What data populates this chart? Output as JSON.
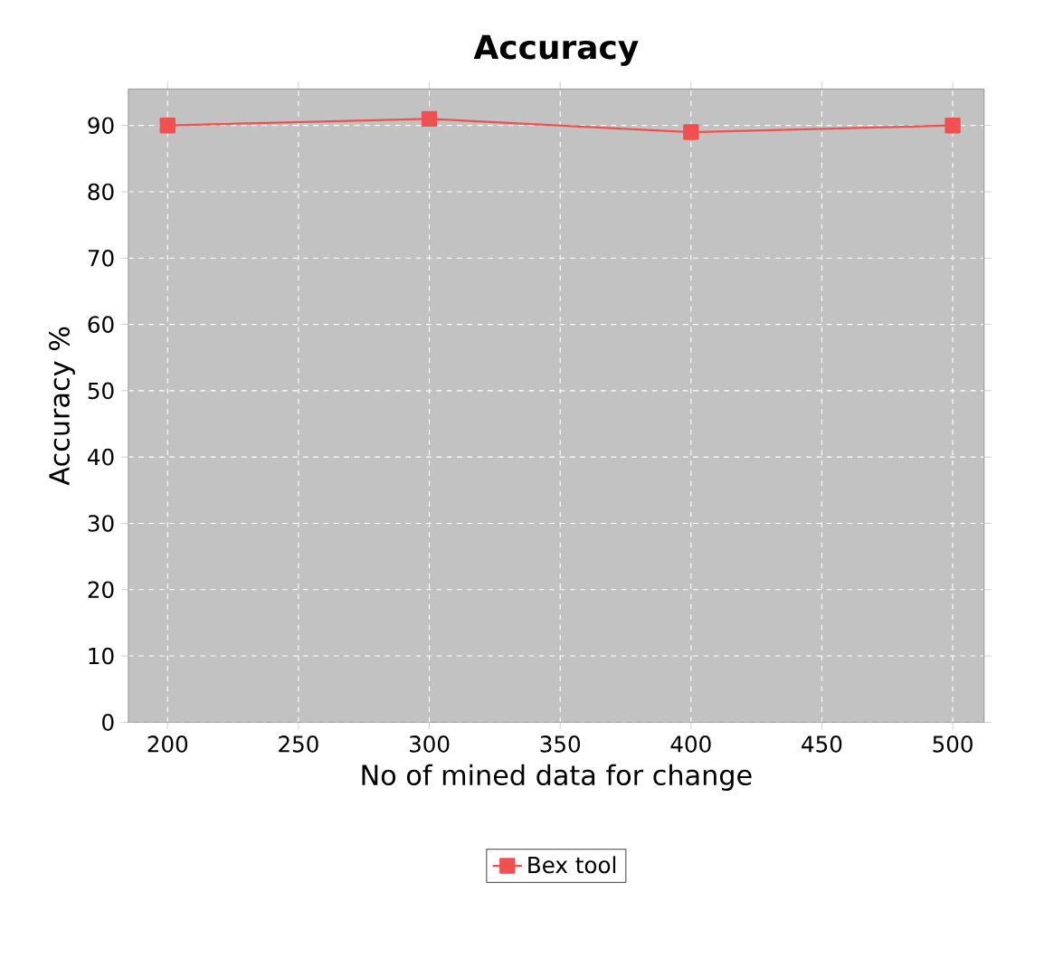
{
  "chart_data": {
    "type": "line",
    "title": "Accuracy",
    "xlabel": "No of mined data for change",
    "ylabel": "Accuracy %",
    "x": [
      200,
      300,
      400,
      500
    ],
    "series": [
      {
        "name": "Bex tool",
        "color": "#f05050",
        "values": [
          90,
          91,
          89,
          90
        ]
      }
    ],
    "xlim": [
      185,
      512
    ],
    "xticks": [
      200,
      250,
      300,
      350,
      400,
      450,
      500
    ],
    "ylim": [
      0,
      95.5
    ],
    "yticks": [
      0,
      10,
      20,
      30,
      40,
      50,
      60,
      70,
      80,
      90
    ],
    "grid": true,
    "legend": "bottom",
    "marker": "square",
    "line_style": "solid"
  }
}
